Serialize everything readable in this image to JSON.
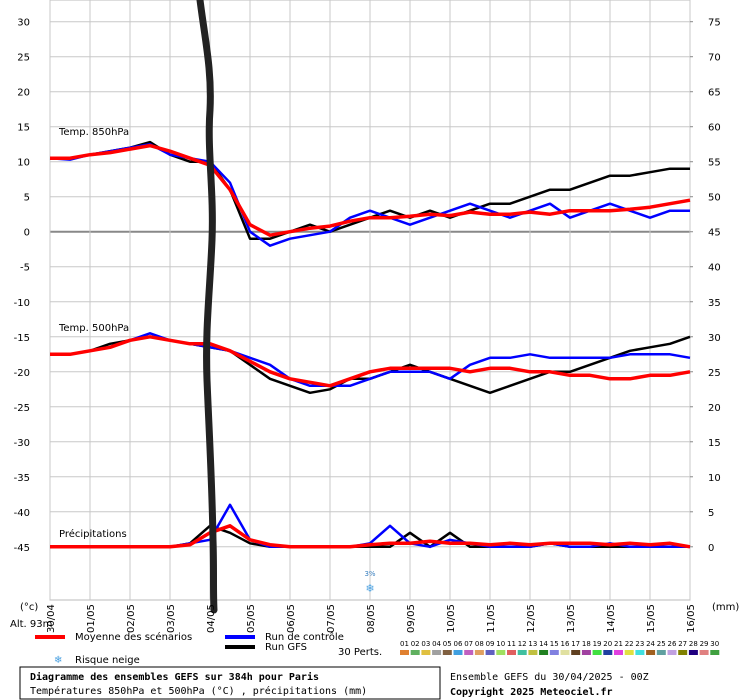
{
  "chart_data": {
    "type": "line",
    "title": "Diagramme des ensembles GEFS sur 384h pour Paris",
    "subtitle": "Températures 850hPa et 500hPa (°C) , précipitations (mm)",
    "run_info": "Ensemble GEFS du 30/04/2025 - 00Z",
    "copyright": "Copyright 2025 Meteociel.fr",
    "altitude": "Alt. 93m",
    "y_unit": "(°c)",
    "y2_unit": "(mm)",
    "variable_labels": {
      "temp850": "Temp. 850hPa",
      "temp500": "Temp. 500hPa",
      "precip": "Précipitations"
    },
    "x": [
      0,
      0.5,
      1,
      1.5,
      2,
      2.5,
      3,
      3.5,
      4,
      4.5,
      5,
      5.5,
      6,
      6.5,
      7,
      7.5,
      8,
      8.5,
      9,
      9.5,
      10,
      10.5,
      11,
      11.5,
      12,
      12.5,
      13,
      13.5,
      14,
      14.5,
      15,
      15.5,
      16
    ],
    "xlim": [
      0,
      16
    ],
    "xticks": [
      {
        "value": 0,
        "label": "30/04"
      },
      {
        "value": 1,
        "label": "01/05"
      },
      {
        "value": 2,
        "label": "02/05"
      },
      {
        "value": 3,
        "label": "03/05"
      },
      {
        "value": 4,
        "label": "04/05"
      },
      {
        "value": 5,
        "label": "05/05"
      },
      {
        "value": 6,
        "label": "06/05"
      },
      {
        "value": 7,
        "label": "07/05"
      },
      {
        "value": 8,
        "label": "08/05"
      },
      {
        "value": 9,
        "label": "09/05"
      },
      {
        "value": 10,
        "label": "10/05"
      },
      {
        "value": 11,
        "label": "11/05"
      },
      {
        "value": 12,
        "label": "12/05"
      },
      {
        "value": 13,
        "label": "13/05"
      },
      {
        "value": 14,
        "label": "14/05"
      },
      {
        "value": 15,
        "label": "15/05"
      },
      {
        "value": 16,
        "label": "16/05"
      }
    ],
    "ylim": [
      -52.6,
      33.1
    ],
    "yticks": [
      30,
      25,
      20,
      15,
      10,
      5,
      0,
      -5,
      -10,
      -15,
      -20,
      -25,
      -30,
      -35,
      -40,
      -45
    ],
    "y2lim": [
      -7.6,
      78.1
    ],
    "y2ticks": [
      75,
      70,
      65,
      60,
      55,
      50,
      45,
      40,
      35,
      30,
      25,
      20,
      15,
      10,
      5,
      0
    ],
    "grid": true,
    "series": [
      {
        "name": "Run GFS",
        "color": "#000000",
        "temp850": [
          10.5,
          10.5,
          11,
          11.5,
          12,
          12.8,
          11,
          10,
          10,
          6,
          -1,
          -1,
          0,
          1,
          0,
          1,
          2,
          3,
          2,
          3,
          2,
          3,
          4,
          4,
          5,
          6,
          6,
          7,
          8,
          8,
          8.5,
          9,
          9
        ],
        "temp500": [
          -17.5,
          -17.5,
          -17,
          -16,
          -15.5,
          -15,
          -15.5,
          -16,
          -16.5,
          -17,
          -19,
          -21,
          -22,
          -23,
          -22.5,
          -21,
          -21,
          -20,
          -19,
          -20,
          -21,
          -22,
          -23,
          -22,
          -21,
          -20,
          -20,
          -19,
          -18,
          -17,
          -16.5,
          -16,
          -15
        ],
        "precip": [
          0,
          0,
          0,
          0,
          0,
          0,
          0,
          0.5,
          3,
          2,
          0.5,
          0,
          0,
          0,
          0,
          0,
          0,
          0,
          2,
          0,
          2,
          0,
          0,
          0,
          0,
          0.5,
          0,
          0,
          0,
          0,
          0,
          0,
          0
        ]
      },
      {
        "name": "Run de contrôle",
        "color": "#0000ff",
        "temp850": [
          10.5,
          10.3,
          11,
          11.5,
          12,
          12.5,
          11,
          10.5,
          10,
          7,
          0,
          -2,
          -1,
          -0.5,
          0,
          2,
          3,
          2,
          1,
          2,
          3,
          4,
          3,
          2,
          3,
          4,
          2,
          3,
          4,
          3,
          2,
          3,
          3
        ],
        "temp500": [
          -17.5,
          -17.5,
          -17,
          -16.5,
          -15.5,
          -14.5,
          -15.5,
          -16,
          -16.5,
          -17,
          -18,
          -19,
          -21,
          -22,
          -22,
          -22,
          -21,
          -20,
          -20,
          -20,
          -21,
          -19,
          -18,
          -18,
          -17.5,
          -18,
          -18,
          -18,
          -18,
          -17.5,
          -17.5,
          -17.5,
          -18
        ],
        "precip": [
          0,
          0,
          0,
          0,
          0,
          0,
          0,
          0.5,
          1,
          6,
          1,
          0,
          0,
          0,
          0,
          0,
          0.5,
          3,
          0.5,
          0,
          1,
          0.5,
          0,
          0,
          0,
          0.5,
          0,
          0,
          0.5,
          0,
          0,
          0,
          0
        ]
      },
      {
        "name": "Moyenne des scénarios",
        "color": "#ff0000",
        "temp850": [
          10.5,
          10.5,
          11,
          11.3,
          11.8,
          12.3,
          11.5,
          10.5,
          9.5,
          6,
          1,
          -0.5,
          0,
          0.5,
          0.8,
          1.5,
          2,
          2,
          2.2,
          2.5,
          2.3,
          2.8,
          2.5,
          2.5,
          2.8,
          2.5,
          3,
          3,
          3,
          3.2,
          3.5,
          4,
          4.5
        ],
        "temp500": [
          -17.5,
          -17.5,
          -17,
          -16.5,
          -15.5,
          -15,
          -15.5,
          -16,
          -16,
          -17,
          -18.5,
          -20,
          -21,
          -21.5,
          -22,
          -21,
          -20,
          -19.5,
          -19.5,
          -19.5,
          -19.5,
          -20,
          -19.5,
          -19.5,
          -20,
          -20,
          -20.5,
          -20.5,
          -21,
          -21,
          -20.5,
          -20.5,
          -20
        ],
        "precip": [
          0,
          0,
          0,
          0,
          0,
          0,
          0,
          0.3,
          2,
          3,
          1,
          0.3,
          0,
          0,
          0,
          0,
          0.3,
          0.5,
          0.5,
          0.8,
          0.5,
          0.5,
          0.3,
          0.5,
          0.3,
          0.5,
          0.5,
          0.5,
          0.3,
          0.5,
          0.3,
          0.5,
          0
        ]
      }
    ],
    "snow_label": "Risque neige",
    "snow_risk": [
      {
        "x": 8,
        "label": "3%"
      }
    ],
    "members_label": "30 Perts.",
    "members": [
      {
        "name": "01",
        "color": "#e08030"
      },
      {
        "name": "02",
        "color": "#60b060"
      },
      {
        "name": "03",
        "color": "#e0c040"
      },
      {
        "name": "04",
        "color": "#a0a0a0"
      },
      {
        "name": "05",
        "color": "#806040"
      },
      {
        "name": "06",
        "color": "#40a0e0"
      },
      {
        "name": "07",
        "color": "#c060c0"
      },
      {
        "name": "08",
        "color": "#e0a060"
      },
      {
        "name": "09",
        "color": "#6060c0"
      },
      {
        "name": "10",
        "color": "#a0e060"
      },
      {
        "name": "11",
        "color": "#e06060"
      },
      {
        "name": "12",
        "color": "#40c0a0"
      },
      {
        "name": "13",
        "color": "#c0c040"
      },
      {
        "name": "14",
        "color": "#208020"
      },
      {
        "name": "15",
        "color": "#8080e0"
      },
      {
        "name": "16",
        "color": "#e0e0a0"
      },
      {
        "name": "17",
        "color": "#604020"
      },
      {
        "name": "18",
        "color": "#a040a0"
      },
      {
        "name": "19",
        "color": "#40e040"
      },
      {
        "name": "20",
        "color": "#2040a0"
      },
      {
        "name": "21",
        "color": "#e040e0"
      },
      {
        "name": "22",
        "color": "#e0e040"
      },
      {
        "name": "23",
        "color": "#40e0e0"
      },
      {
        "name": "24",
        "color": "#a06020"
      },
      {
        "name": "25",
        "color": "#60a0a0"
      },
      {
        "name": "26",
        "color": "#c0a0e0"
      },
      {
        "name": "27",
        "color": "#808000"
      },
      {
        "name": "28",
        "color": "#200080"
      },
      {
        "name": "29",
        "color": "#e08080"
      },
      {
        "name": "30",
        "color": "#40a040"
      }
    ]
  }
}
